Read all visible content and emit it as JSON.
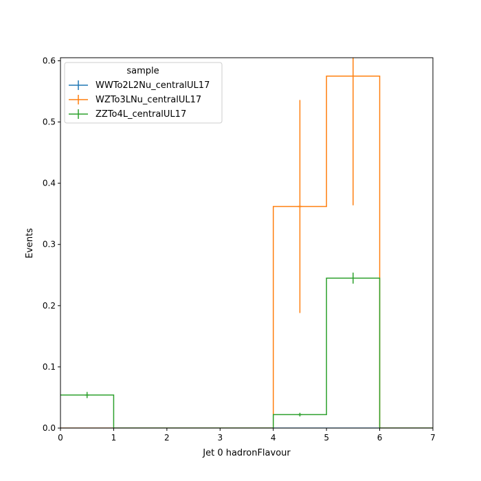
{
  "chart_data": {
    "type": "histogram-step",
    "xlabel": "Jet 0 hadronFlavour",
    "ylabel": "Events",
    "xlim": [
      0,
      7
    ],
    "ylim": [
      0,
      0.605
    ],
    "xticks": [
      0,
      1,
      2,
      3,
      4,
      5,
      6,
      7
    ],
    "yticks": [
      0.0,
      0.1,
      0.2,
      0.3,
      0.4,
      0.5,
      0.6
    ],
    "bin_edges": [
      0,
      1,
      2,
      3,
      4,
      5,
      6,
      7
    ],
    "legend": {
      "title": "sample",
      "placement": "top-left"
    },
    "series": [
      {
        "name": "WWTo2L2Nu_centralUL17",
        "color": "#1f77b4",
        "values": [
          0,
          0,
          0,
          0,
          0,
          0,
          0
        ],
        "errors": [
          0,
          0,
          0,
          0,
          0,
          0,
          0
        ]
      },
      {
        "name": "WZTo3LNu_centralUL17",
        "color": "#ff7f0e",
        "values": [
          0,
          0,
          0,
          0,
          0.362,
          0.575,
          0
        ],
        "errors": [
          0,
          0,
          0,
          0,
          0.174,
          0.211,
          0
        ]
      },
      {
        "name": "ZZTo4L_centralUL17",
        "color": "#2ca02c",
        "values": [
          0.054,
          0,
          0,
          0,
          0.022,
          0.245,
          0
        ],
        "errors": [
          0.005,
          0,
          0,
          0,
          0.003,
          0.009,
          0
        ]
      }
    ]
  }
}
